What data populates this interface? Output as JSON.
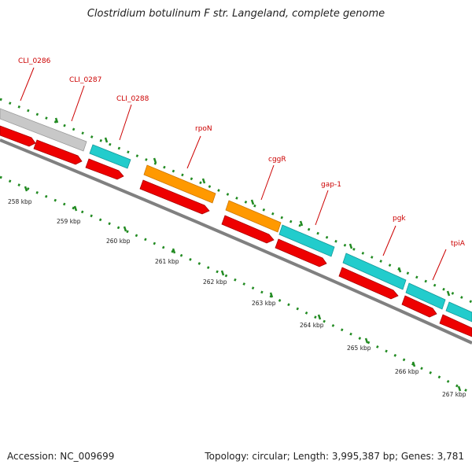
{
  "title": "Clostridium botulinum F str. Langeland, complete genome",
  "footer": {
    "accession": "Accession: NC_009699",
    "summary": "Topology: circular; Length: 3,995,387 bp; Genes: 3,781"
  },
  "colors": {
    "cds_forward": "#ff0000",
    "gene_teal": "#00cccc",
    "gene_orange": "#ff9900",
    "gene_gray": "#c0c0c0",
    "backbone": "#808080",
    "tick": "#228b22",
    "label": "#cc0000"
  },
  "gene_labels": [
    "CLI_0286",
    "CLI_0287",
    "CLI_0288",
    "rpoN",
    "cggR",
    "gap-1",
    "pgk",
    "tpiA"
  ],
  "tick_labels": [
    "258 kbp",
    "259 kbp",
    "260 kbp",
    "261 kbp",
    "262 kbp",
    "263 kbp",
    "264 kbp",
    "265 kbp",
    "266 kbp",
    "267 kbp"
  ]
}
